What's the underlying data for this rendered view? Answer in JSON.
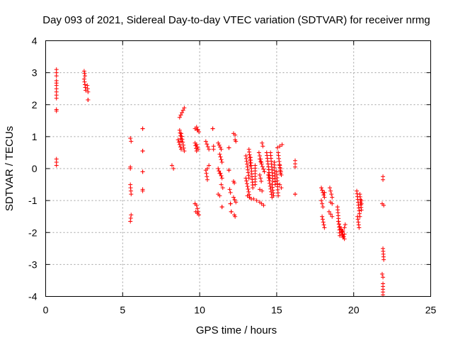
{
  "chart_data": {
    "type": "scatter",
    "title": "Day 093 of 2021, Sidereal Day-to-day VTEC variation (SDTVAR) for receiver nrmg",
    "xlabel": "GPS time / hours",
    "ylabel": "SDTVAR / TECUs",
    "xlim": [
      0,
      25
    ],
    "ylim": [
      -4,
      4
    ],
    "xticks": [
      "0",
      "5",
      "10",
      "15",
      "20",
      "25"
    ],
    "yticks": [
      "-4",
      "-3",
      "-2",
      "-1",
      "0",
      "1",
      "2",
      "3",
      "4"
    ],
    "grid": true,
    "marker": "+",
    "color": "#ff0000",
    "segments": [
      [
        0.7,
        0.7,
        3.1,
        2.9
      ],
      [
        0.7,
        0.7,
        2.75,
        2.6
      ],
      [
        0.7,
        0.7,
        2.5,
        2.2
      ],
      [
        0.7,
        0.7,
        1.85,
        1.8
      ],
      [
        0.7,
        0.7,
        0.3,
        0.1
      ],
      [
        2.5,
        2.55,
        3.05,
        2.9
      ],
      [
        2.5,
        2.6,
        2.8,
        2.45
      ],
      [
        2.7,
        2.75,
        2.6,
        2.4
      ],
      [
        2.75,
        2.75,
        2.15,
        2.15
      ],
      [
        5.5,
        5.55,
        0.95,
        0.85
      ],
      [
        5.5,
        5.5,
        0.05,
        0.0
      ],
      [
        5.5,
        5.55,
        -0.5,
        -0.8
      ],
      [
        5.55,
        5.5,
        -1.45,
        -1.65
      ],
      [
        6.3,
        6.3,
        1.25,
        1.25
      ],
      [
        6.3,
        6.3,
        0.55,
        0.55
      ],
      [
        6.3,
        6.3,
        -0.1,
        -0.1
      ],
      [
        6.3,
        6.3,
        -0.65,
        -0.7
      ],
      [
        8.2,
        8.3,
        0.1,
        0.0
      ],
      [
        8.7,
        9.0,
        1.6,
        1.9
      ],
      [
        8.7,
        8.8,
        1.2,
        0.85
      ],
      [
        8.8,
        9.0,
        1.1,
        0.55
      ],
      [
        8.6,
        8.8,
        0.9,
        0.6
      ],
      [
        9.7,
        9.85,
        1.25,
        1.2
      ],
      [
        9.8,
        9.95,
        1.3,
        1.15
      ],
      [
        9.7,
        9.8,
        0.8,
        0.55
      ],
      [
        9.8,
        9.9,
        0.75,
        0.6
      ],
      [
        9.75,
        9.95,
        -1.35,
        -1.45
      ],
      [
        9.8,
        9.9,
        -1.15,
        -1.35
      ],
      [
        9.7,
        9.7,
        -1.1,
        -1.1
      ],
      [
        10.4,
        10.6,
        0.85,
        0.6
      ],
      [
        10.4,
        10.5,
        -0.05,
        -0.35
      ],
      [
        10.5,
        10.6,
        0.0,
        0.1
      ],
      [
        10.85,
        10.85,
        1.25,
        1.25
      ],
      [
        10.9,
        10.9,
        0.7,
        0.6
      ],
      [
        11.2,
        11.4,
        0.8,
        0.6
      ],
      [
        11.3,
        11.45,
        0.45,
        0.2
      ],
      [
        11.2,
        11.3,
        0.0,
        -0.15
      ],
      [
        11.35,
        11.45,
        -0.15,
        -0.3
      ],
      [
        11.4,
        11.5,
        -0.5,
        -0.6
      ],
      [
        11.2,
        11.3,
        -0.8,
        -0.85
      ],
      [
        11.45,
        11.45,
        -1.2,
        -1.2
      ],
      [
        11.9,
        11.9,
        0.65,
        0.65
      ],
      [
        11.9,
        11.9,
        -0.05,
        -0.05
      ],
      [
        11.95,
        12.0,
        -0.65,
        -0.75
      ],
      [
        12.0,
        12.0,
        -1.1,
        -1.1
      ],
      [
        12.05,
        12.05,
        -1.35,
        -1.35
      ],
      [
        12.2,
        12.3,
        1.1,
        1.05
      ],
      [
        12.3,
        12.35,
        0.9,
        0.85
      ],
      [
        12.2,
        12.25,
        -0.4,
        -0.45
      ],
      [
        12.2,
        12.35,
        -0.9,
        -1.05
      ],
      [
        12.25,
        12.3,
        -1.45,
        -1.5
      ],
      [
        13.0,
        13.2,
        0.4,
        -0.3
      ],
      [
        13.0,
        13.25,
        -0.3,
        -0.9
      ],
      [
        13.3,
        13.45,
        0.35,
        -0.6
      ],
      [
        13.1,
        13.35,
        -0.85,
        -0.95
      ],
      [
        13.2,
        13.3,
        0.6,
        0.1
      ],
      [
        13.6,
        13.6,
        0.1,
        -0.5
      ],
      [
        13.5,
        13.7,
        -0.95,
        -1.0
      ],
      [
        13.85,
        14.0,
        0.5,
        0.2
      ],
      [
        13.9,
        14.2,
        0.3,
        -0.1
      ],
      [
        13.9,
        14.0,
        -0.2,
        -0.4
      ],
      [
        13.9,
        14.05,
        -0.65,
        -0.7
      ],
      [
        13.9,
        14.15,
        -1.05,
        -1.15
      ],
      [
        14.05,
        14.1,
        0.8,
        0.7
      ],
      [
        14.35,
        14.55,
        0.5,
        -0.3
      ],
      [
        14.45,
        14.7,
        -0.2,
        -0.9
      ],
      [
        14.6,
        14.75,
        0.5,
        -0.4
      ],
      [
        14.7,
        14.8,
        -0.5,
        -0.85
      ],
      [
        14.85,
        14.9,
        0.2,
        -0.5
      ],
      [
        15.0,
        15.1,
        -0.1,
        -0.85
      ],
      [
        15.05,
        15.35,
        0.65,
        0.75
      ],
      [
        15.1,
        15.25,
        0.5,
        -0.15
      ],
      [
        15.2,
        15.3,
        0.1,
        -0.2
      ],
      [
        15.2,
        15.3,
        -0.5,
        -0.6
      ],
      [
        16.2,
        16.2,
        0.25,
        0.05
      ],
      [
        16.2,
        16.2,
        -0.8,
        -0.8
      ],
      [
        17.9,
        18.1,
        -0.6,
        -0.9
      ],
      [
        17.9,
        18.0,
        -1.0,
        -1.2
      ],
      [
        17.95,
        18.1,
        -1.5,
        -1.85
      ],
      [
        18.1,
        18.1,
        -0.75,
        -0.75
      ],
      [
        18.45,
        18.6,
        -0.6,
        -0.9
      ],
      [
        18.5,
        18.6,
        -1.05,
        -1.1
      ],
      [
        18.4,
        18.6,
        -1.35,
        -1.5
      ],
      [
        18.95,
        19.1,
        -1.2,
        -2.1
      ],
      [
        19.0,
        19.3,
        -1.65,
        -2.15
      ],
      [
        19.2,
        19.4,
        -1.9,
        -2.2
      ],
      [
        19.3,
        19.4,
        -1.95,
        -2.05
      ],
      [
        19.4,
        19.45,
        -1.85,
        -1.75
      ],
      [
        20.2,
        20.4,
        -0.7,
        -1.5
      ],
      [
        20.25,
        20.35,
        -1.5,
        -1.85
      ],
      [
        20.4,
        20.5,
        -0.8,
        -1.3
      ],
      [
        20.5,
        20.5,
        -1.1,
        -1.0
      ],
      [
        21.9,
        21.9,
        -0.25,
        -0.35
      ],
      [
        21.85,
        21.95,
        -1.1,
        -1.15
      ],
      [
        21.9,
        21.95,
        -2.5,
        -2.85
      ],
      [
        21.85,
        21.9,
        -3.3,
        -3.4
      ],
      [
        21.9,
        21.9,
        -3.6,
        -3.95
      ]
    ]
  }
}
